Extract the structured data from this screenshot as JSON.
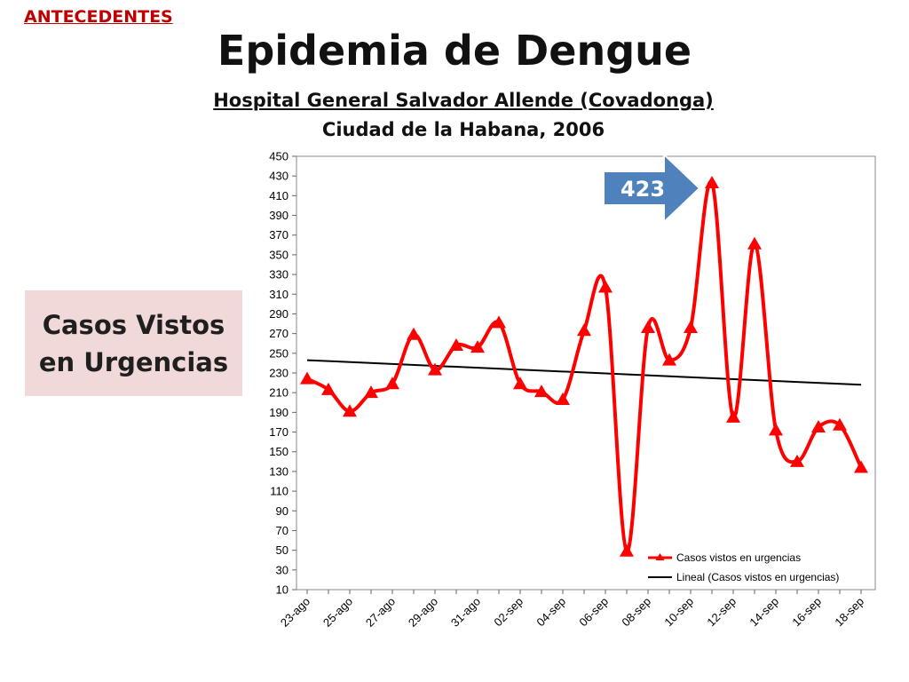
{
  "header": {
    "section_label": "ANTECEDENTES",
    "title": "Epidemia de Dengue",
    "subtitle_line1": "Hospital General Salvador Allende (Covadonga)",
    "subtitle_line2": "Ciudad de la Habana, 2006"
  },
  "side_box": {
    "line1": "Casos Vistos",
    "line2": "en Urgencias"
  },
  "callout": {
    "value_label": "423",
    "color": "#4f81bd"
  },
  "chart_data": {
    "type": "line",
    "title": "",
    "xlabel": "",
    "ylabel": "",
    "ylim": [
      10,
      450
    ],
    "y_ticks": [
      10,
      30,
      50,
      70,
      90,
      110,
      130,
      150,
      170,
      190,
      210,
      230,
      250,
      270,
      290,
      310,
      330,
      350,
      370,
      390,
      410,
      430,
      450
    ],
    "x_tick_labels": [
      "23-ago",
      "25-ago",
      "27-ago",
      "29-ago",
      "31-ago",
      "02-sep",
      "04-sep",
      "06-sep",
      "08-sep",
      "10-sep",
      "12-sep",
      "14-sep",
      "16-sep",
      "18-sep"
    ],
    "grid": false,
    "legend_position": "bottom-right",
    "series": [
      {
        "name": "Casos vistos en urgencias",
        "color": "#ff0000",
        "marker": "triangle",
        "values": [
          224,
          213,
          191,
          210,
          219,
          269,
          233,
          258,
          256,
          281,
          219,
          211,
          203,
          273,
          317,
          49,
          276,
          243,
          276,
          423,
          185,
          361,
          172,
          140,
          175,
          177,
          134
        ]
      },
      {
        "name": "Lineal (Casos vistos en urgencias)",
        "color": "#000000",
        "type": "trendline",
        "start_value": 243,
        "end_value": 218
      }
    ]
  }
}
